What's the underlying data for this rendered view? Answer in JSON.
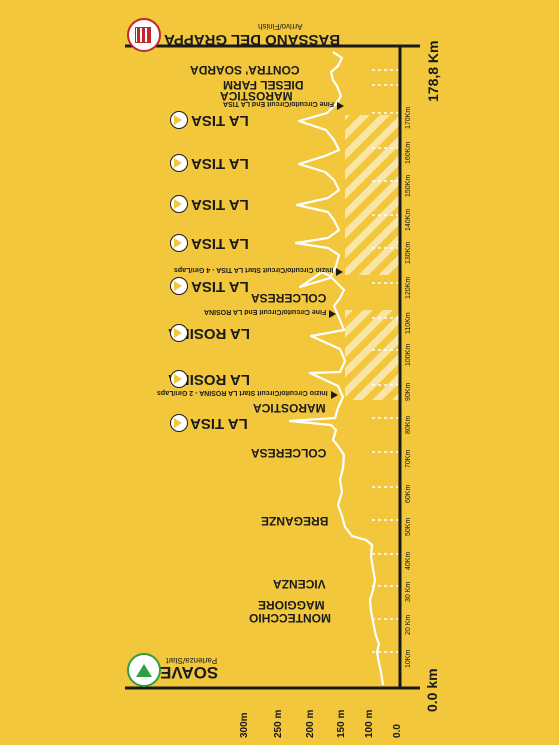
{
  "colors": {
    "background": "#f2c73b",
    "ink": "#1a1a1a",
    "profile": "#ffffff",
    "hatch": "#ffffff",
    "start_badge": "#2e9e3e",
    "finish_badge": "#c0282d"
  },
  "start": {
    "name": "SOAVE",
    "sub": "Partenza/Start",
    "km": "0.0 km"
  },
  "finish": {
    "name": "BASSANO DEL GRAPPA",
    "sub": "Arrivo/Finish",
    "km": "178,8 Km"
  },
  "elevation_ticks": [
    "0.0",
    "100 m",
    "150 m",
    "200 m",
    "250 m",
    "300m"
  ],
  "distance_ticks": [
    "10Km",
    "20 Km",
    "30 Km",
    "40Km",
    "50Km",
    "60Km",
    "70Km",
    "80Km",
    "90Km",
    "100Km",
    "110Km",
    "120Km",
    "130Km",
    "140Km",
    "150Km",
    "160Km",
    "170Km"
  ],
  "places": [
    {
      "name": "MONTECCHIO",
      "name2": "MAGGIORE"
    },
    {
      "name": "VICENZA"
    },
    {
      "name": "BREGANZE"
    },
    {
      "name": "COLCERESA"
    },
    {
      "name": "MAROSTICA"
    },
    {
      "name": "COLCERESA"
    },
    {
      "name": "MAROSTICA"
    },
    {
      "name": "DIESEL FARM"
    },
    {
      "name": "CONTRA' SOARDA"
    }
  ],
  "climbs": [
    {
      "name": "LA TISA"
    },
    {
      "name": "LA ROSINA"
    },
    {
      "name": "LA ROSINA"
    },
    {
      "name": "LA TISA"
    },
    {
      "name": "LA TISA"
    },
    {
      "name": "LA TISA"
    },
    {
      "name": "LA TISA"
    },
    {
      "name": "LA TISA"
    }
  ],
  "circuit_notes": [
    {
      "text": "Inizio Circuito/Circuit Start LA ROSINA - 2 Giri/Laps"
    },
    {
      "text": "Fine Circuito/Circuit End LA ROSINA"
    },
    {
      "text": "Inizio Circuito/Circuit Start LA TISA - 4 Giri/Laps"
    },
    {
      "text": "Fine Circuito/Circuit End LA TISA"
    }
  ],
  "profile_icons": {
    "start": "start-triangle-icon",
    "finish": "finish-tower-icon",
    "climb": "climb-triangle-icon"
  }
}
